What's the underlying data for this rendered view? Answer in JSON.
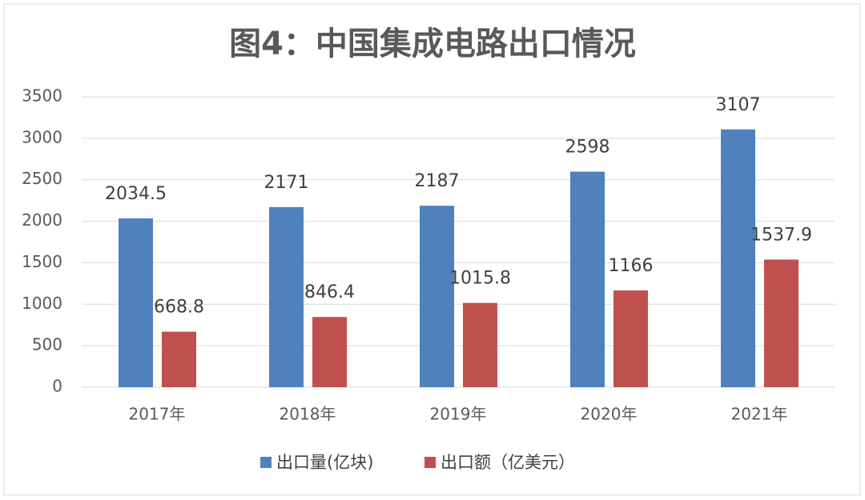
{
  "chart_data": {
    "type": "bar",
    "title": "图4：中国集成电路出口情况",
    "categories": [
      "2017年",
      "2018年",
      "2019年",
      "2020年",
      "2021年"
    ],
    "series": [
      {
        "name": "出口量(亿块)",
        "color": "#4f81bd",
        "values": [
          2034.5,
          2171,
          2187,
          2598,
          3107
        ]
      },
      {
        "name": "出口额（亿美元）",
        "color": "#c0504d",
        "values": [
          668.8,
          846.4,
          1015.8,
          1166,
          1537.9
        ]
      }
    ],
    "ylim": [
      0,
      3500
    ],
    "yticks": [
      0,
      500,
      1000,
      1500,
      2000,
      2500,
      3000,
      3500
    ],
    "grid": true,
    "legend": "bottom"
  }
}
